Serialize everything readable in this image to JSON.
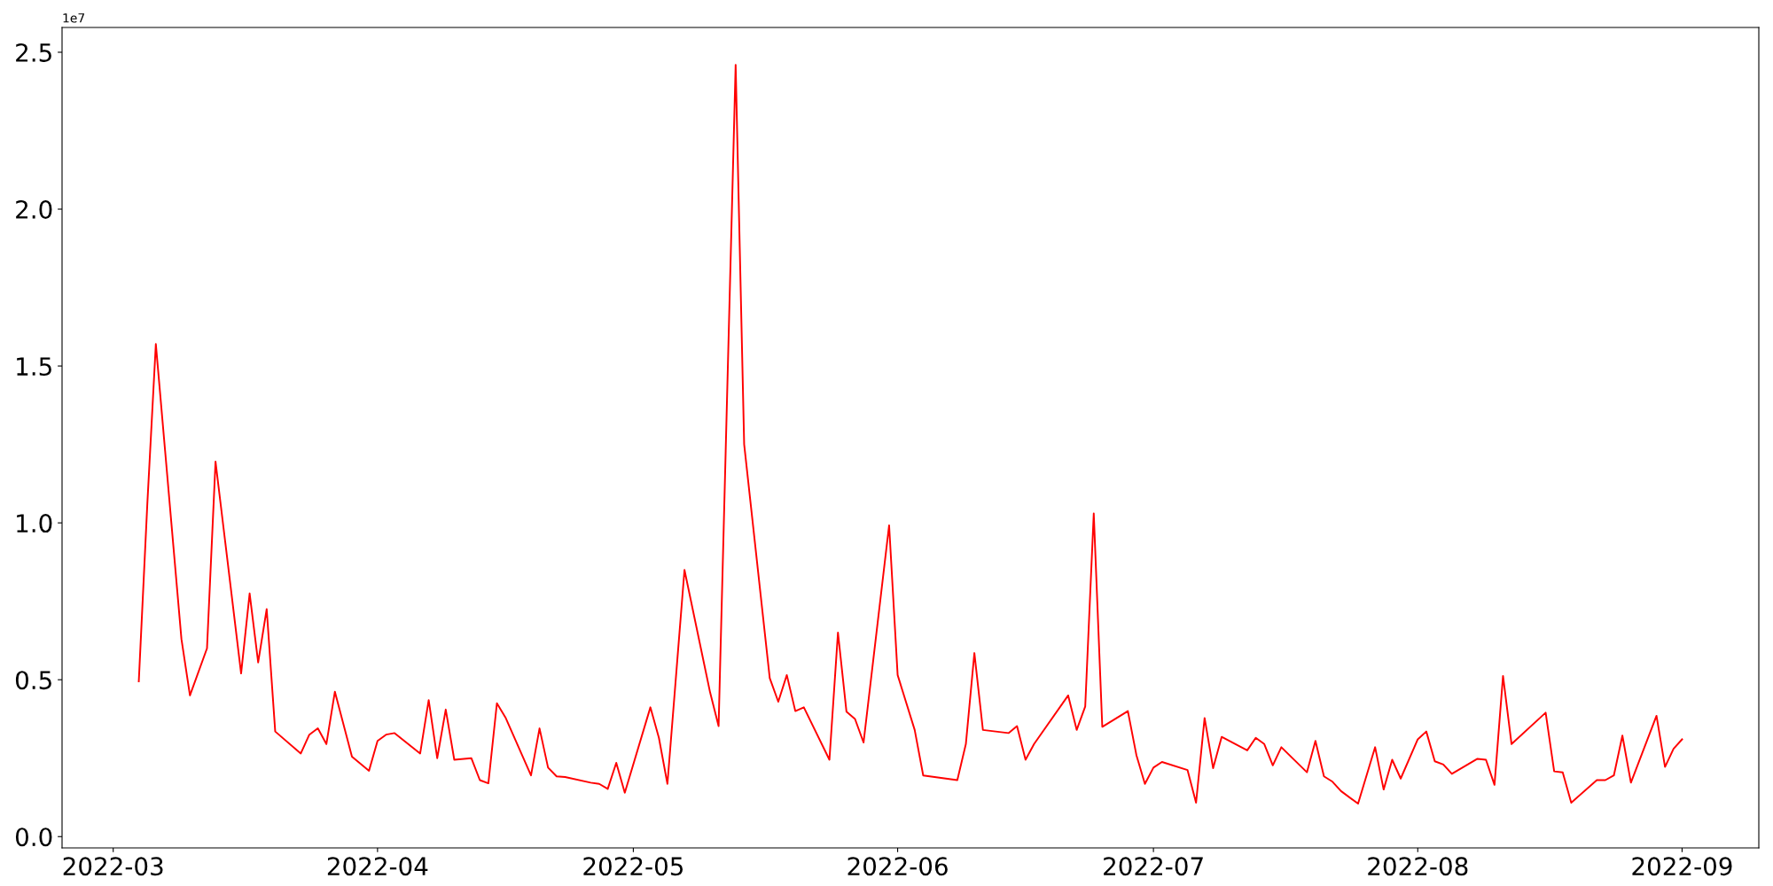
{
  "chart_data": {
    "type": "line",
    "annotations": [
      "1e7"
    ],
    "x": [
      "2022-03-04",
      "2022-03-05",
      "2022-03-06",
      "2022-03-09",
      "2022-03-10",
      "2022-03-12",
      "2022-03-13",
      "2022-03-16",
      "2022-03-17",
      "2022-03-18",
      "2022-03-19",
      "2022-03-20",
      "2022-03-23",
      "2022-03-24",
      "2022-03-25",
      "2022-03-26",
      "2022-03-27",
      "2022-03-29",
      "2022-03-31",
      "2022-04-01",
      "2022-04-02",
      "2022-04-03",
      "2022-04-06",
      "2022-04-07",
      "2022-04-08",
      "2022-04-09",
      "2022-04-10",
      "2022-04-12",
      "2022-04-13",
      "2022-04-14",
      "2022-04-15",
      "2022-04-16",
      "2022-04-19",
      "2022-04-20",
      "2022-04-21",
      "2022-04-22",
      "2022-04-23",
      "2022-04-26",
      "2022-04-27",
      "2022-04-28",
      "2022-04-29",
      "2022-04-30",
      "2022-05-03",
      "2022-05-04",
      "2022-05-05",
      "2022-05-07",
      "2022-05-10",
      "2022-05-11",
      "2022-05-13",
      "2022-05-14",
      "2022-05-17",
      "2022-05-18",
      "2022-05-19",
      "2022-05-20",
      "2022-05-21",
      "2022-05-24",
      "2022-05-25",
      "2022-05-26",
      "2022-05-27",
      "2022-05-28",
      "2022-05-31",
      "2022-06-01",
      "2022-06-03",
      "2022-06-04",
      "2022-06-08",
      "2022-06-09",
      "2022-06-10",
      "2022-06-11",
      "2022-06-14",
      "2022-06-15",
      "2022-06-16",
      "2022-06-17",
      "2022-06-21",
      "2022-06-22",
      "2022-06-23",
      "2022-06-24",
      "2022-06-25",
      "2022-06-28",
      "2022-06-29",
      "2022-06-30",
      "2022-07-01",
      "2022-07-02",
      "2022-07-05",
      "2022-07-06",
      "2022-07-07",
      "2022-07-08",
      "2022-07-09",
      "2022-07-12",
      "2022-07-13",
      "2022-07-14",
      "2022-07-15",
      "2022-07-16",
      "2022-07-19",
      "2022-07-20",
      "2022-07-21",
      "2022-07-22",
      "2022-07-23",
      "2022-07-25",
      "2022-07-27",
      "2022-07-28",
      "2022-07-29",
      "2022-07-30",
      "2022-08-01",
      "2022-08-02",
      "2022-08-03",
      "2022-08-04",
      "2022-08-05",
      "2022-08-08",
      "2022-08-09",
      "2022-08-10",
      "2022-08-11",
      "2022-08-12",
      "2022-08-16",
      "2022-08-17",
      "2022-08-18",
      "2022-08-19",
      "2022-08-22",
      "2022-08-23",
      "2022-08-24",
      "2022-08-25",
      "2022-08-26",
      "2022-08-29",
      "2022-08-30",
      "2022-08-31",
      "2022-09-01"
    ],
    "series": [
      {
        "color": "#ff0000",
        "values": [
          0.495,
          1.06,
          1.57,
          0.63,
          0.45,
          0.6,
          1.195,
          0.52,
          0.775,
          0.555,
          0.725,
          0.335,
          0.265,
          0.325,
          0.345,
          0.295,
          0.462,
          0.255,
          0.21,
          0.305,
          0.325,
          0.33,
          0.265,
          0.435,
          0.25,
          0.405,
          0.245,
          0.25,
          0.18,
          0.17,
          0.425,
          0.38,
          0.195,
          0.345,
          0.22,
          0.192,
          0.19,
          0.172,
          0.168,
          0.152,
          0.235,
          0.14,
          0.412,
          0.315,
          0.168,
          0.85,
          0.46,
          0.352,
          2.46,
          1.25,
          0.505,
          0.43,
          0.515,
          0.4,
          0.412,
          0.245,
          0.65,
          0.398,
          0.375,
          0.3,
          0.992,
          0.515,
          0.34,
          0.195,
          0.18,
          0.295,
          0.585,
          0.34,
          0.33,
          0.352,
          0.245,
          0.295,
          0.45,
          0.34,
          0.415,
          1.03,
          0.35,
          0.4,
          0.26,
          0.168,
          0.22,
          0.238,
          0.212,
          0.108,
          0.378,
          0.218,
          0.318,
          0.275,
          0.315,
          0.295,
          0.227,
          0.285,
          0.205,
          0.305,
          0.192,
          0.175,
          0.145,
          0.105,
          0.285,
          0.15,
          0.245,
          0.185,
          0.31,
          0.335,
          0.24,
          0.23,
          0.2,
          0.248,
          0.245,
          0.165,
          0.512,
          0.295,
          0.395,
          0.208,
          0.205,
          0.108,
          0.18,
          0.18,
          0.195,
          0.322,
          0.172,
          0.385,
          0.222,
          0.28,
          0.31
        ]
      }
    ],
    "xlim": [
      "2022-02-23",
      "2022-09-10"
    ],
    "xticks": [
      {
        "value": "2022-03",
        "label": "2022-03"
      },
      {
        "value": "2022-04",
        "label": "2022-04"
      },
      {
        "value": "2022-05",
        "label": "2022-05"
      },
      {
        "value": "2022-06",
        "label": "2022-06"
      },
      {
        "value": "2022-07",
        "label": "2022-07"
      },
      {
        "value": "2022-08",
        "label": "2022-08"
      },
      {
        "value": "2022-09",
        "label": "2022-09"
      }
    ],
    "ylim": [
      -0.036,
      2.579
    ],
    "yticks": [
      {
        "value": 0,
        "label": "0.0"
      },
      0.5,
      {
        "value": 1,
        "label": "1.0"
      },
      1.5,
      {
        "value": 2,
        "label": "2.0"
      },
      2.5
    ],
    "grid": false,
    "marker": "none",
    "line_style": "solid"
  }
}
